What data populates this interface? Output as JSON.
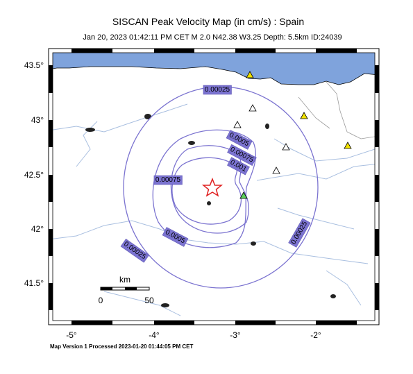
{
  "header": {
    "title": "SISCAN Peak Velocity Map (in cm/s) : Spain",
    "subtitle": "Jan 20, 2023 01:42:11 PM CET   M 2.0   N42.38 W3.25   Depth: 5.5km   ID:24039"
  },
  "axes": {
    "x_labels": [
      "-5°",
      "-4°",
      "-3°",
      "-2°"
    ],
    "y_labels": [
      "43.5°",
      "43°",
      "42.5°",
      "42°",
      "41.5°"
    ]
  },
  "contour_labels": [
    "0.00025",
    "0.0005",
    "0.00075",
    "0.001",
    "0.00075",
    "0.0005",
    "0.00025",
    "0.00025"
  ],
  "scale": {
    "unit": "km",
    "labels": [
      "0",
      "50"
    ]
  },
  "footer": "Map Version 1 Processed 2023-01-20 01:44:05 PM CET"
}
